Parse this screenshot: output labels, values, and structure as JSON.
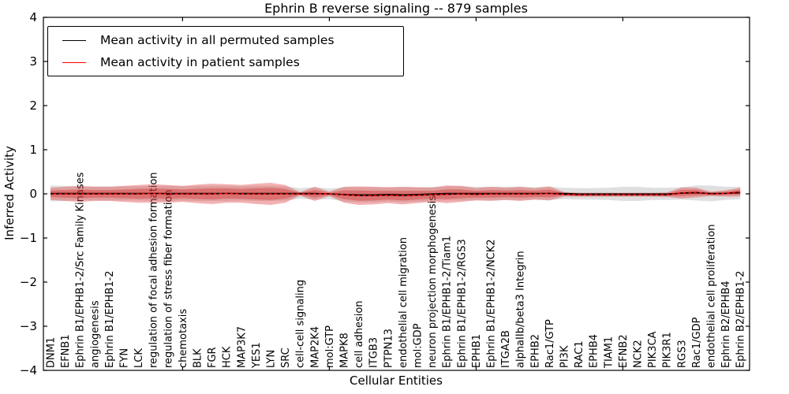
{
  "chart_data": {
    "type": "line",
    "title": "Ephrin B reverse signaling -- 879 samples",
    "xlabel": "Cellular Entities",
    "ylabel": "Inferred Activity",
    "ylim": [
      -4,
      4
    ],
    "ytick_labels": [
      "4",
      "3",
      "2",
      "1",
      "0",
      "−1",
      "−2",
      "−3",
      "−4"
    ],
    "ytick_values": [
      4,
      3,
      2,
      1,
      0,
      -1,
      -2,
      -3,
      -4
    ],
    "xtick_major_indices": [
      9,
      19,
      29,
      39
    ],
    "grid": false,
    "legend": {
      "position": "upper left",
      "entries": [
        {
          "label": "Mean activity in all permuted samples",
          "color": "#000000"
        },
        {
          "label": "Mean activity in patient samples",
          "color": "#ff0000"
        }
      ]
    },
    "categories": [
      "DNM1",
      "EFNB1",
      "Ephrin B1/EPHB1-2/Src Family Kinases",
      "angiogenesis",
      "Ephrin B1/EPHB1-2",
      "FYN",
      "LCK",
      "regulation of focal adhesion formation",
      "regulation of stress fiber formation",
      "chemotaxis",
      "BLK",
      "FGR",
      "HCK",
      "MAP3K7",
      "YES1",
      "LYN",
      "SRC",
      "cell-cell signaling",
      "MAP2K4",
      "mol:GTP",
      "MAPK8",
      "cell adhesion",
      "ITGB3",
      "PTPN13",
      "endothelial cell migration",
      "mol:GDP",
      "neuron projection morphogenesis",
      "Ephrin B1/EPHB1-2/Tiam1",
      "Ephrin B1/EPHB1-2/RGS3",
      "EPHB1",
      "Ephrin B1/EPHB1-2/NCK2",
      "ITGA2B",
      "alphaIIb/beta3 Integrin",
      "EPHB2",
      "Rac1/GTP",
      "PI3K",
      "RAC1",
      "EPHB4",
      "TIAM1",
      "EFNB2",
      "NCK2",
      "PIK3CA",
      "PIK3R1",
      "RGS3",
      "Rac1/GDP",
      "endothelial cell proliferation",
      "Ephrin B2/EPHB4",
      "Ephrin B2/EPHB1-2"
    ],
    "series": [
      {
        "name": "Mean activity in all permuted samples",
        "line_color": "#000000",
        "band_color": "rgba(80,80,80,0.18)",
        "mean": [
          0.01,
          0.01,
          0.01,
          0.01,
          0.01,
          0.01,
          0.01,
          0.01,
          0.01,
          0.01,
          0.01,
          0.01,
          0.01,
          0.01,
          0.01,
          0.01,
          0.01,
          0.01,
          0.01,
          0.0,
          -0.01,
          -0.02,
          -0.02,
          -0.01,
          -0.02,
          -0.01,
          0.0,
          0.01,
          0.01,
          0.01,
          0.01,
          0.01,
          0.01,
          0.01,
          0.01,
          0.01,
          0.0,
          0.0,
          0.0,
          0.0,
          0.0,
          0.0,
          0.0,
          0.01,
          0.02,
          0.01,
          0.01,
          0.02
        ],
        "std": [
          0.18,
          0.17,
          0.16,
          0.16,
          0.16,
          0.16,
          0.16,
          0.17,
          0.17,
          0.16,
          0.17,
          0.17,
          0.17,
          0.16,
          0.17,
          0.17,
          0.16,
          0.12,
          0.14,
          0.12,
          0.16,
          0.17,
          0.17,
          0.16,
          0.17,
          0.16,
          0.16,
          0.16,
          0.16,
          0.15,
          0.15,
          0.15,
          0.15,
          0.14,
          0.15,
          0.13,
          0.13,
          0.13,
          0.14,
          0.16,
          0.16,
          0.14,
          0.14,
          0.14,
          0.17,
          0.18,
          0.15,
          0.14
        ]
      },
      {
        "name": "Mean activity in patient samples",
        "line_color": "#ff0000",
        "band_color": "rgba(225,60,60,0.40)",
        "band_core_color": "rgba(210,40,40,0.38)",
        "mean": [
          0.0,
          0.0,
          0.0,
          0.0,
          0.0,
          0.0,
          0.0,
          0.01,
          0.0,
          0.0,
          0.0,
          0.0,
          0.01,
          0.0,
          0.0,
          0.0,
          0.0,
          0.0,
          0.0,
          0.0,
          -0.02,
          -0.04,
          -0.04,
          -0.03,
          -0.04,
          -0.03,
          -0.02,
          -0.01,
          0.0,
          -0.01,
          0.0,
          0.0,
          0.0,
          0.0,
          0.01,
          -0.01,
          -0.02,
          -0.02,
          -0.02,
          -0.02,
          -0.02,
          -0.02,
          -0.02,
          0.02,
          0.03,
          0.0,
          0.01,
          0.04
        ],
        "std": [
          0.14,
          0.16,
          0.18,
          0.16,
          0.16,
          0.18,
          0.2,
          0.21,
          0.2,
          0.18,
          0.21,
          0.23,
          0.21,
          0.2,
          0.23,
          0.25,
          0.2,
          0.04,
          0.16,
          0.05,
          0.18,
          0.21,
          0.2,
          0.18,
          0.2,
          0.18,
          0.16,
          0.2,
          0.18,
          0.14,
          0.16,
          0.14,
          0.16,
          0.13,
          0.16,
          0.05,
          0.045,
          0.045,
          0.045,
          0.045,
          0.045,
          0.045,
          0.05,
          0.125,
          0.11,
          0.05,
          0.07,
          0.1
        ]
      }
    ]
  }
}
